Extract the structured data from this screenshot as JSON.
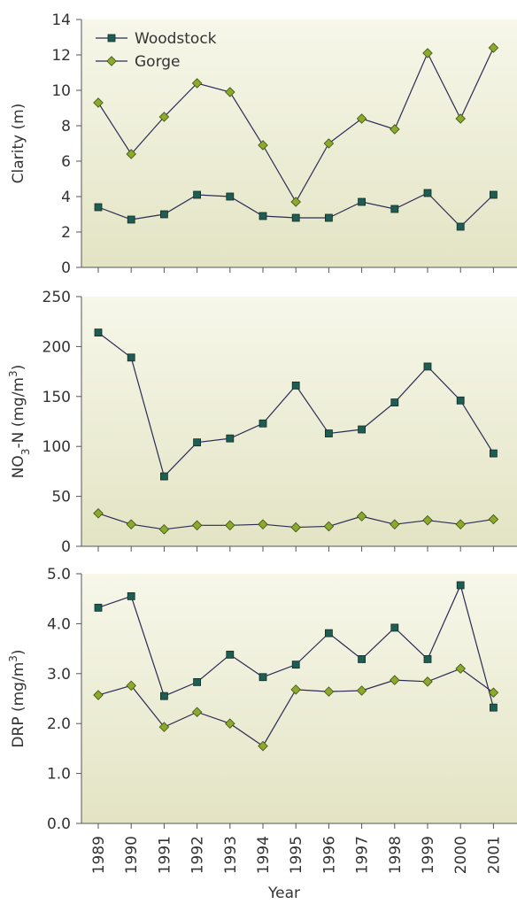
{
  "chart_data": [
    {
      "type": "line",
      "ylabel": "Clarity (m)",
      "ylim": [
        0,
        14
      ],
      "yticks": [
        "0",
        "2",
        "4",
        "6",
        "8",
        "10",
        "12",
        "14"
      ],
      "x": [
        1989,
        1990,
        1991,
        1992,
        1993,
        1994,
        1995,
        1996,
        1997,
        1998,
        1999,
        2000,
        2001
      ],
      "series": [
        {
          "name": "Woodstock",
          "marker": "square",
          "values": [
            3.4,
            2.7,
            3.0,
            4.1,
            4.0,
            2.9,
            2.8,
            2.8,
            3.7,
            3.3,
            4.2,
            2.3,
            4.1
          ]
        },
        {
          "name": "Gorge",
          "marker": "diamond",
          "values": [
            9.3,
            6.4,
            8.5,
            10.4,
            9.9,
            6.9,
            3.7,
            7.0,
            8.4,
            7.8,
            12.1,
            8.4,
            12.4
          ]
        }
      ],
      "legend": "top-left"
    },
    {
      "type": "line",
      "ylabel": "NO3-N (mg/m3)",
      "ylim": [
        0,
        250
      ],
      "yticks": [
        "0",
        "50",
        "100",
        "150",
        "200",
        "250"
      ],
      "x": [
        1989,
        1990,
        1991,
        1992,
        1993,
        1994,
        1995,
        1996,
        1997,
        1998,
        1999,
        2000,
        2001
      ],
      "series": [
        {
          "marker": "square",
          "values": [
            214,
            189,
            70,
            104,
            108,
            123,
            161,
            113,
            117,
            144,
            180,
            146,
            93
          ]
        },
        {
          "marker": "diamond",
          "values": [
            33,
            22,
            17,
            21,
            21,
            22,
            19,
            20,
            30,
            22,
            26,
            22,
            27
          ]
        }
      ]
    },
    {
      "type": "line",
      "ylabel": "DRP (mg/m3)",
      "ylim": [
        0,
        5
      ],
      "yticks": [
        "0.0",
        "1.0",
        "2.0",
        "3.0",
        "4.0",
        "5.0"
      ],
      "x": [
        1989,
        1990,
        1991,
        1992,
        1993,
        1994,
        1995,
        1996,
        1997,
        1998,
        1999,
        2000,
        2001
      ],
      "xlabel": "Year",
      "xticks": [
        "1989",
        "1990",
        "1991",
        "1992",
        "1993",
        "1994",
        "1995",
        "1996",
        "1997",
        "1998",
        "1999",
        "2000",
        "2001"
      ],
      "series": [
        {
          "marker": "square",
          "values": [
            4.32,
            4.55,
            2.55,
            2.83,
            3.38,
            2.93,
            3.18,
            3.81,
            3.29,
            3.92,
            3.29,
            4.77,
            2.32
          ]
        },
        {
          "marker": "diamond",
          "values": [
            2.57,
            2.76,
            1.93,
            2.23,
            2.0,
            1.55,
            2.68,
            2.64,
            2.66,
            2.87,
            2.84,
            3.1,
            2.62
          ]
        }
      ]
    }
  ],
  "colors": {
    "woodstock_fill": "#1f5c52",
    "gorge_fill": "#8aaa2e",
    "line": "#2b2b55",
    "panel_top": "#f7f7ea",
    "panel_bottom": "#e3e4c4"
  }
}
